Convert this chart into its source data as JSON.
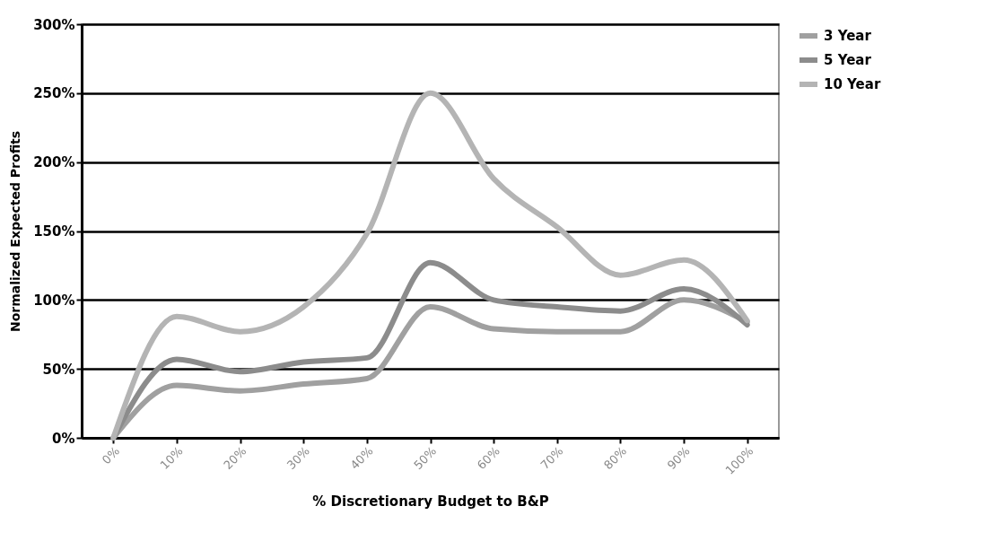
{
  "chart_data": {
    "type": "line",
    "xlabel": "% Discretionary Budget to B&P",
    "ylabel": "Normalized Expected Profits",
    "categories": [
      "0%",
      "10%",
      "20%",
      "30%",
      "40%",
      "50%",
      "60%",
      "70%",
      "80%",
      "90%",
      "100%"
    ],
    "series": [
      {
        "name": "3 Year",
        "color": "#a0a0a0",
        "values": [
          0,
          38,
          34,
          39,
          43,
          95,
          79,
          77,
          77,
          100,
          84
        ]
      },
      {
        "name": "5 Year",
        "color": "#8c8c8c",
        "values": [
          0,
          57,
          48,
          55,
          58,
          127,
          100,
          95,
          92,
          108,
          82
        ]
      },
      {
        "name": "10 Year",
        "color": "#b4b4b4",
        "values": [
          0,
          88,
          77,
          95,
          148,
          250,
          188,
          153,
          118,
          129,
          85
        ]
      }
    ],
    "ylim": [
      0,
      300
    ],
    "yticks": [
      {
        "value": 0,
        "label": "0%"
      },
      {
        "value": 50,
        "label": "50%"
      },
      {
        "value": 100,
        "label": "100%"
      },
      {
        "value": 150,
        "label": "150%"
      },
      {
        "value": 200,
        "label": "200%"
      },
      {
        "value": 250,
        "label": "250%"
      },
      {
        "value": 300,
        "label": "300%"
      }
    ],
    "grid": "y",
    "legend": "right",
    "marker": "none",
    "line_style": "solid"
  }
}
